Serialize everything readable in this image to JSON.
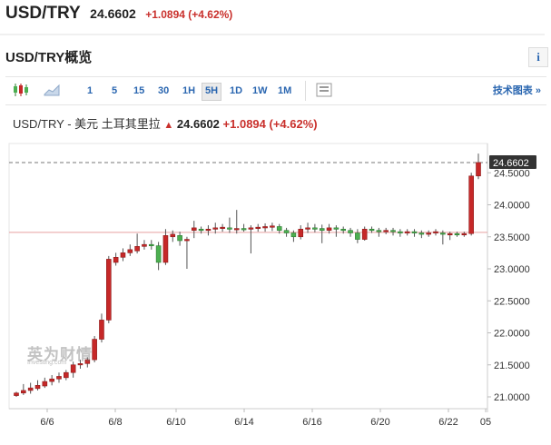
{
  "header": {
    "symbol": "USD/TRY",
    "price": "24.6602",
    "change": "+1.0894 (+4.62%)"
  },
  "section": {
    "title": "USD/TRY概览",
    "info_icon": "i"
  },
  "toolbar": {
    "intervals": [
      "1",
      "5",
      "15",
      "30",
      "1H",
      "5H",
      "1D",
      "1W",
      "1M"
    ],
    "active_interval": "5H",
    "advanced_label": "技术图表 »"
  },
  "chart_head": {
    "name": "USD/TRY - 美元 土耳其里拉",
    "price": "24.6602",
    "change": "+1.0894 (+4.62%)"
  },
  "watermark": {
    "cn": "英为财情",
    "en": "Investing.com"
  },
  "colors": {
    "up": "#c62828",
    "down": "#4caf50",
    "accent": "#2a66b0",
    "change": "#c9302c"
  },
  "chart_data": {
    "type": "candlestick",
    "y_ticks": [
      "24.5000",
      "24.0000",
      "23.5000",
      "23.0000",
      "22.5000",
      "22.0000",
      "21.5000",
      "21.0000"
    ],
    "y_range": [
      20.75,
      25.0
    ],
    "x_ticks": [
      "6/6",
      "6/8",
      "6/10",
      "6/14",
      "6/16",
      "6/20",
      "6/22",
      "05"
    ],
    "last_price_label": "24.6602",
    "last_price": 24.6602,
    "prev_close": 23.57,
    "candles": [
      [
        21.02,
        21.06,
        21.0,
        21.08
      ],
      [
        21.06,
        21.1,
        21.03,
        21.2
      ],
      [
        21.1,
        21.14,
        21.05,
        21.22
      ],
      [
        21.13,
        21.18,
        21.1,
        21.26
      ],
      [
        21.17,
        21.24,
        21.14,
        21.3
      ],
      [
        21.24,
        21.28,
        21.18,
        21.34
      ],
      [
        21.28,
        21.32,
        21.22,
        21.38
      ],
      [
        21.3,
        21.38,
        21.26,
        21.42
      ],
      [
        21.38,
        21.5,
        21.3,
        21.55
      ],
      [
        21.5,
        21.52,
        21.44,
        21.58
      ],
      [
        21.52,
        21.58,
        21.46,
        21.62
      ],
      [
        21.58,
        21.9,
        21.54,
        21.95
      ],
      [
        21.9,
        22.2,
        21.85,
        22.3
      ],
      [
        22.2,
        23.15,
        22.15,
        23.2
      ],
      [
        23.1,
        23.18,
        23.05,
        23.25
      ],
      [
        23.18,
        23.25,
        23.12,
        23.32
      ],
      [
        23.25,
        23.3,
        23.2,
        23.38
      ],
      [
        23.28,
        23.35,
        23.24,
        23.55
      ],
      [
        23.35,
        23.38,
        23.3,
        23.45
      ],
      [
        23.38,
        23.36,
        23.3,
        23.45
      ],
      [
        23.36,
        23.1,
        22.98,
        23.42
      ],
      [
        23.1,
        23.52,
        23.06,
        23.62
      ],
      [
        23.5,
        23.54,
        23.42,
        23.6
      ],
      [
        23.52,
        23.44,
        23.36,
        23.58
      ],
      [
        23.44,
        23.46,
        23.0,
        23.5
      ],
      [
        23.6,
        23.64,
        23.48,
        23.75
      ],
      [
        23.62,
        23.6,
        23.55,
        23.66
      ],
      [
        23.6,
        23.62,
        23.52,
        23.68
      ],
      [
        23.62,
        23.64,
        23.55,
        23.72
      ],
      [
        23.63,
        23.65,
        23.58,
        23.7
      ],
      [
        23.64,
        23.62,
        23.56,
        23.8
      ],
      [
        23.62,
        23.63,
        23.55,
        23.92
      ],
      [
        23.63,
        23.62,
        23.58,
        23.7
      ],
      [
        23.62,
        23.64,
        23.24,
        23.68
      ],
      [
        23.64,
        23.65,
        23.58,
        23.7
      ],
      [
        23.64,
        23.66,
        23.58,
        23.71
      ],
      [
        23.65,
        23.67,
        23.59,
        23.72
      ],
      [
        23.66,
        23.6,
        23.55,
        23.7
      ],
      [
        23.6,
        23.56,
        23.5,
        23.64
      ],
      [
        23.56,
        23.5,
        23.42,
        23.6
      ],
      [
        23.5,
        23.62,
        23.46,
        23.68
      ],
      [
        23.62,
        23.64,
        23.56,
        23.72
      ],
      [
        23.64,
        23.63,
        23.57,
        23.7
      ],
      [
        23.63,
        23.6,
        23.4,
        23.69
      ],
      [
        23.6,
        23.64,
        23.55,
        23.7
      ],
      [
        23.64,
        23.62,
        23.5,
        23.68
      ],
      [
        23.62,
        23.6,
        23.55,
        23.66
      ],
      [
        23.6,
        23.56,
        23.5,
        23.64
      ],
      [
        23.56,
        23.46,
        23.4,
        23.62
      ],
      [
        23.46,
        23.62,
        23.44,
        23.66
      ],
      [
        23.62,
        23.6,
        23.56,
        23.66
      ],
      [
        23.6,
        23.58,
        23.5,
        23.64
      ],
      [
        23.58,
        23.6,
        23.54,
        23.64
      ],
      [
        23.6,
        23.58,
        23.52,
        23.64
      ],
      [
        23.58,
        23.56,
        23.5,
        23.62
      ],
      [
        23.56,
        23.58,
        23.52,
        23.62
      ],
      [
        23.58,
        23.56,
        23.5,
        23.62
      ],
      [
        23.56,
        23.54,
        23.48,
        23.6
      ],
      [
        23.54,
        23.56,
        23.5,
        23.6
      ],
      [
        23.56,
        23.58,
        23.52,
        23.62
      ],
      [
        23.56,
        23.54,
        23.38,
        23.6
      ],
      [
        23.54,
        23.55,
        23.45,
        23.58
      ],
      [
        23.55,
        23.54,
        23.5,
        23.58
      ],
      [
        23.54,
        23.55,
        23.5,
        23.58
      ],
      [
        23.55,
        24.45,
        23.52,
        24.5
      ],
      [
        24.45,
        24.66,
        24.4,
        24.8
      ]
    ]
  }
}
